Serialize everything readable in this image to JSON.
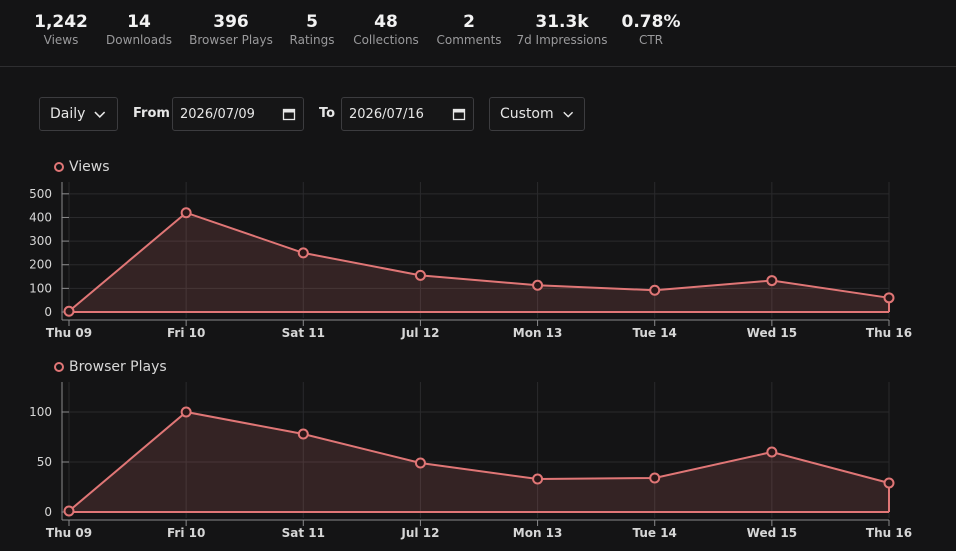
{
  "stats": [
    {
      "value": "1,242",
      "label": "Views"
    },
    {
      "value": "14",
      "label": "Downloads"
    },
    {
      "value": "396",
      "label": "Browser Plays"
    },
    {
      "value": "5",
      "label": "Ratings"
    },
    {
      "value": "48",
      "label": "Collections"
    },
    {
      "value": "2",
      "label": "Comments"
    },
    {
      "value": "31.3k",
      "label": "7d Impressions"
    },
    {
      "value": "0.78%",
      "label": "CTR"
    }
  ],
  "controls": {
    "interval": "Daily",
    "from_label": "From",
    "from_date": "2026/07/09",
    "to_label": "To",
    "to_date": "2026/07/16",
    "range": "Custom"
  },
  "accent_color": "#e07676",
  "chart_data": [
    {
      "type": "area",
      "series": [
        {
          "name": "Views",
          "values": [
            3,
            420,
            250,
            155,
            113,
            92,
            133,
            60
          ]
        }
      ],
      "categories": [
        "Thu 09",
        "Fri 10",
        "Sat 11",
        "Jul 12",
        "Mon 13",
        "Tue 14",
        "Wed 15",
        "Thu 16"
      ],
      "yticks": [
        0,
        100,
        200,
        300,
        400,
        500
      ],
      "ylim": [
        0,
        550
      ],
      "grid": true,
      "legend": "top-left"
    },
    {
      "type": "area",
      "series": [
        {
          "name": "Browser Plays",
          "values": [
            1,
            100,
            78,
            49,
            33,
            34,
            60,
            29
          ]
        }
      ],
      "categories": [
        "Thu 09",
        "Fri 10",
        "Sat 11",
        "Jul 12",
        "Mon 13",
        "Tue 14",
        "Wed 15",
        "Thu 16"
      ],
      "yticks": [
        0,
        50,
        100
      ],
      "ylim": [
        0,
        130
      ],
      "grid": true,
      "legend": "top-left"
    }
  ]
}
